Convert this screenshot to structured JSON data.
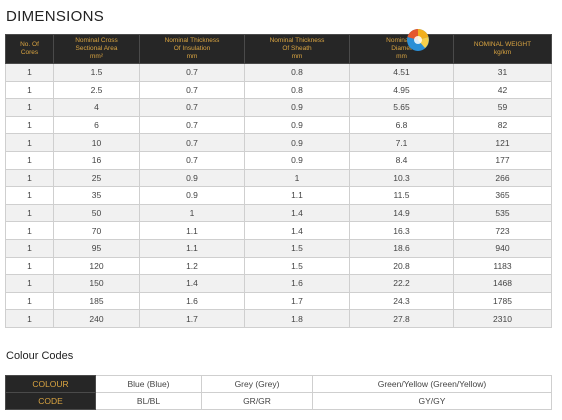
{
  "title": "DIMENSIONS",
  "headers": [
    {
      "lines": [
        "No. Of",
        "Cores"
      ]
    },
    {
      "lines": [
        "Nominal Cross",
        "Sectional Area",
        "mm²"
      ]
    },
    {
      "lines": [
        "Nominal Thickness",
        "Of Insulation",
        "mm"
      ]
    },
    {
      "lines": [
        "Nominal Thickness",
        "Of Sheath",
        "mm"
      ]
    },
    {
      "lines": [
        "Nominal O",
        "Diamet",
        "mm"
      ]
    },
    {
      "lines": [
        "NOMINAL WEIGHT",
        "kg/km"
      ]
    }
  ],
  "rows": [
    [
      "1",
      "1.5",
      "0.7",
      "0.8",
      "4.51",
      "31"
    ],
    [
      "1",
      "2.5",
      "0.7",
      "0.8",
      "4.95",
      "42"
    ],
    [
      "1",
      "4",
      "0.7",
      "0.9",
      "5.65",
      "59"
    ],
    [
      "1",
      "6",
      "0.7",
      "0.9",
      "6.8",
      "82"
    ],
    [
      "1",
      "10",
      "0.7",
      "0.9",
      "7.1",
      "121"
    ],
    [
      "1",
      "16",
      "0.7",
      "0.9",
      "8.4",
      "177"
    ],
    [
      "1",
      "25",
      "0.9",
      "1",
      "10.3",
      "266"
    ],
    [
      "1",
      "35",
      "0.9",
      "1.1",
      "11.5",
      "365"
    ],
    [
      "1",
      "50",
      "1",
      "1.4",
      "14.9",
      "535"
    ],
    [
      "1",
      "70",
      "1.1",
      "1.4",
      "16.3",
      "723"
    ],
    [
      "1",
      "95",
      "1.1",
      "1.5",
      "18.6",
      "940"
    ],
    [
      "1",
      "120",
      "1.2",
      "1.5",
      "20.8",
      "1183"
    ],
    [
      "1",
      "150",
      "1.4",
      "1.6",
      "22.2",
      "1468"
    ],
    [
      "1",
      "185",
      "1.6",
      "1.7",
      "24.3",
      "1785"
    ],
    [
      "1",
      "240",
      "1.7",
      "1.8",
      "27.8",
      "2310"
    ]
  ],
  "colour_title": "Colour Codes",
  "colour": {
    "colour_label": "COLOUR",
    "code_label": "CODE",
    "colours": [
      "Blue (Blue)",
      "Grey (Grey)",
      "Green/Yellow (Green/Yellow)"
    ],
    "codes": [
      "BL/BL",
      "GR/GR",
      "GY/GY"
    ]
  },
  "colors": {
    "header_bg": "#262626",
    "header_text": "#d9a441",
    "row_alt": "#f1f1f1"
  }
}
